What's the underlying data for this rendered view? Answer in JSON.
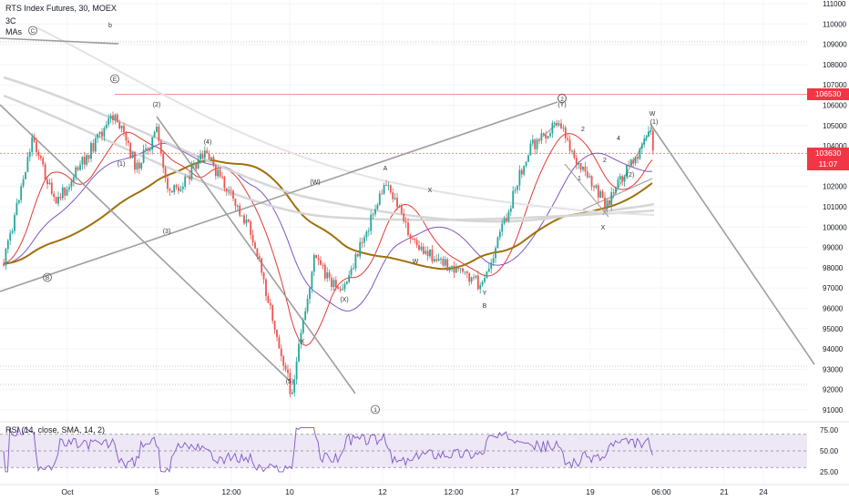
{
  "header": {
    "title": "RTS Index Futures, 30, MOEX",
    "line2": "3C",
    "line3": "MAs"
  },
  "rsi": {
    "label": "RSI (14, close, SMA, 14, 2)",
    "ticks": [
      "75.00",
      "50.00",
      "25.00"
    ]
  },
  "badges": {
    "resistance": "106530",
    "price": "103630",
    "countdown": "11:07"
  },
  "colors": {
    "up": "#26a69a",
    "down": "#ef5350",
    "ma_fast": "#e53935",
    "ma_mid": "#7e57c2",
    "ma_slow": "#a0700a",
    "ma_long": "#d6d6d6",
    "trendline": "#9e9e9e",
    "rsi_line": "#7e57c2",
    "rsi_band": "#ede7f6",
    "level_line": "#f28b82"
  },
  "chart_data": {
    "type": "candlestick",
    "title": "RTS Index Futures, 30, MOEX",
    "ylim": [
      90500,
      111500
    ],
    "y_ticks": [
      "111000",
      "110000",
      "109000",
      "108000",
      "107000",
      "106000",
      "105000",
      "104000",
      "103000",
      "102000",
      "101000",
      "100000",
      "99000",
      "98000",
      "97000",
      "96000",
      "95000",
      "94000",
      "93000",
      "92000",
      "91000"
    ],
    "x_ticks": [
      "Oct",
      "5",
      "12:00",
      "10",
      "12",
      "12:00",
      "17",
      "19",
      "06:00",
      "21",
      "24"
    ],
    "resistance_level": 106530,
    "last_price": 103630,
    "wave_labels": [
      "C",
      "b",
      "E",
      "B",
      "(2)",
      "(1)",
      "(4)",
      "(3)",
      "(5)",
      "1",
      "(W)",
      "A",
      "X",
      "W",
      "(X)",
      "Y",
      "B",
      "2",
      "(Y)",
      "1",
      "2",
      "4",
      "W",
      "(2)",
      "X",
      "(1)",
      "X",
      "5",
      "3"
    ],
    "price_path": [
      {
        "x": "Sep 29",
        "y": 98200
      },
      {
        "x": "Sep 30",
        "y": 104500
      },
      {
        "x": "Oct 2",
        "y": 101100
      },
      {
        "x": "Oct 3",
        "y": 105600
      },
      {
        "x": "Oct 4",
        "y": 102900
      },
      {
        "x": "Oct 5",
        "y": 104700
      },
      {
        "x": "Oct 6",
        "y": 101500
      },
      {
        "x": "Oct 7",
        "y": 103600
      },
      {
        "x": "Oct 9",
        "y": 99800
      },
      {
        "x": "Oct 10",
        "y": 91800
      },
      {
        "x": "Oct 10 PM",
        "y": 98500
      },
      {
        "x": "Oct 11",
        "y": 96600
      },
      {
        "x": "Oct 12",
        "y": 102300
      },
      {
        "x": "Oct 13",
        "y": 99100
      },
      {
        "x": "Oct 16",
        "y": 97100
      },
      {
        "x": "Oct 17",
        "y": 103800
      },
      {
        "x": "Oct 18",
        "y": 105300
      },
      {
        "x": "Oct 18 PM",
        "y": 103000
      },
      {
        "x": "Oct 19",
        "y": 101100
      },
      {
        "x": "Oct 20",
        "y": 104700
      },
      {
        "x": "Oct 20 06:00",
        "y": 103630
      }
    ],
    "rsi": {
      "ylim": [
        15,
        85
      ],
      "overbought": 70,
      "oversold": 30
    }
  }
}
